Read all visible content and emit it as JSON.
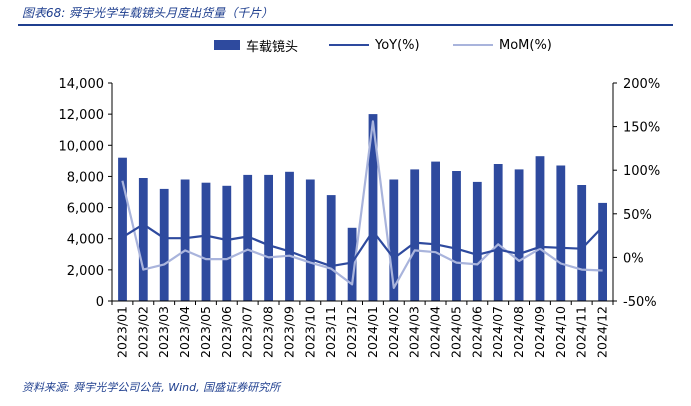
{
  "header": {
    "title": "图表68:  舜宇光学车载镜头月度出货量（千片）"
  },
  "footer": {
    "source": "资料来源:  舜宇光学公司公告, Wind, 国盛证券研究所"
  },
  "colors": {
    "bar": "#2e4a9e",
    "yoy": "#2e4a9e",
    "mom": "#a9b4dc",
    "accent": "#1f3f8f"
  },
  "chart_data": {
    "type": "bar",
    "categories": [
      "2023/01",
      "2023/02",
      "2023/03",
      "2023/04",
      "2023/05",
      "2023/06",
      "2023/07",
      "2023/08",
      "2023/09",
      "2023/10",
      "2023/11",
      "2023/12",
      "2024/01",
      "2024/02",
      "2024/03",
      "2024/04",
      "2024/05",
      "2024/06",
      "2024/07",
      "2024/08",
      "2024/09",
      "2024/10",
      "2024/11",
      "2024/12"
    ],
    "series": [
      {
        "name": "车载镜头",
        "type": "bar",
        "axis": "left",
        "values": [
          9200,
          7900,
          7200,
          7800,
          7600,
          7400,
          8100,
          8100,
          8300,
          7800,
          6800,
          4700,
          12000,
          7800,
          8450,
          8950,
          8350,
          7650,
          8800,
          8450,
          9300,
          8700,
          7450,
          6300
        ]
      },
      {
        "name": "YoY(%)",
        "type": "line",
        "axis": "right",
        "values": [
          23,
          38,
          22,
          22,
          25,
          20,
          24,
          14,
          7,
          -2,
          -10,
          -6,
          30,
          -1,
          17,
          15,
          10,
          3,
          9,
          4,
          12,
          11,
          10,
          35
        ]
      },
      {
        "name": "MoM(%)",
        "type": "line",
        "axis": "right",
        "values": [
          88,
          -14,
          -8,
          8,
          -2,
          -2,
          9,
          0,
          2,
          -6,
          -13,
          -31,
          156,
          -35,
          8,
          6,
          -6,
          -8,
          15,
          -4,
          10,
          -7,
          -14,
          -15
        ]
      }
    ],
    "yleft": {
      "min": 0,
      "max": 14000,
      "ticks": [
        "0",
        "2,000",
        "4,000",
        "6,000",
        "8,000",
        "10,000",
        "12,000",
        "14,000"
      ]
    },
    "yright": {
      "min": -50,
      "max": 200,
      "ticks": [
        "-50%",
        "0%",
        "50%",
        "100%",
        "150%",
        "200%"
      ]
    },
    "legend_position": "top",
    "grid": false
  }
}
